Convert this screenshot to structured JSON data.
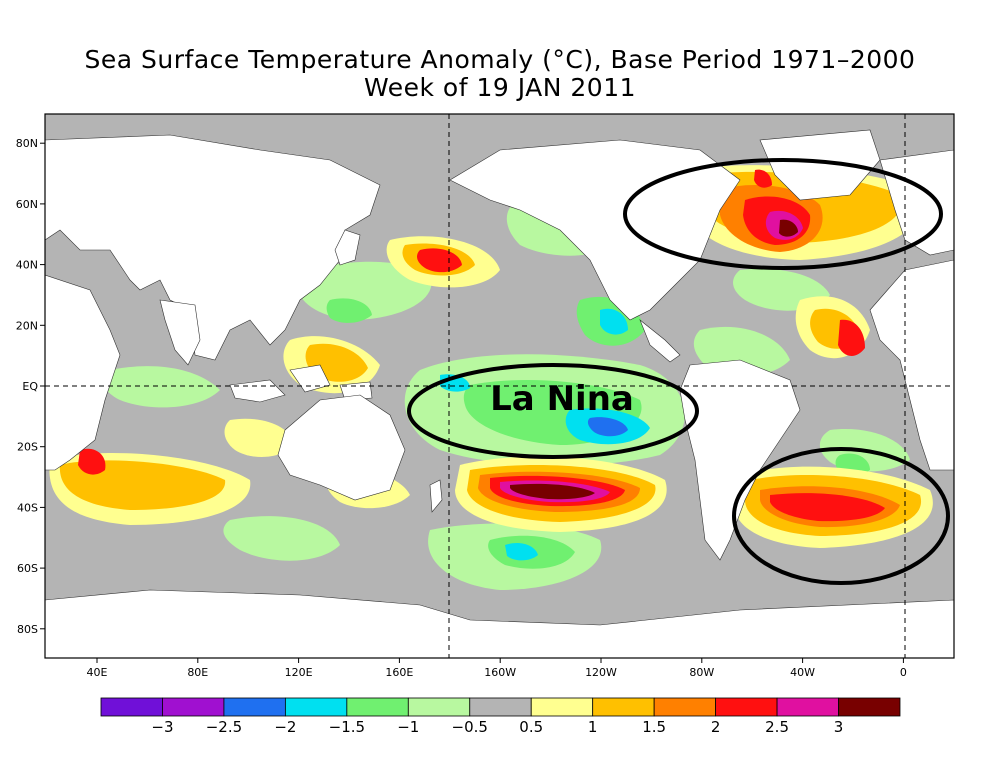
{
  "title": {
    "line1": "Sea Surface Temperature Anomaly (°C), Base Period 1971–2000",
    "line2": "Week of 19 JAN 2011"
  },
  "annotation": {
    "label": "La Nina"
  },
  "lat_labels": [
    "80N",
    "60N",
    "40N",
    "20N",
    "EQ",
    "20S",
    "40S",
    "60S",
    "80S"
  ],
  "lon_labels": [
    "40E",
    "80E",
    "120E",
    "160E",
    "160W",
    "120W",
    "80W",
    "40W",
    "0"
  ],
  "colorbar": {
    "colors": [
      "#7010d8",
      "#a010d0",
      "#1f70f0",
      "#00e0f0",
      "#70f070",
      "#b8f8a0",
      "#b4b4b4",
      "#ffff90",
      "#ffc000",
      "#ff8000",
      "#ff1010",
      "#e010a0",
      "#780000"
    ],
    "labels": [
      "−3",
      "−2.5",
      "−2",
      "−1.5",
      "−1",
      "−0.5",
      "0.5",
      "1",
      "1.5",
      "2",
      "2.5",
      "3"
    ]
  },
  "chart_data": {
    "type": "heatmap",
    "title": "Sea Surface Temperature Anomaly (°C), Base Period 1971–2000",
    "subtitle": "Week of 19 JAN 2011",
    "xlabel": "",
    "ylabel": "",
    "x_ticks": [
      "40E",
      "80E",
      "120E",
      "160E",
      "160W",
      "120W",
      "80W",
      "40W",
      "0"
    ],
    "y_ticks": [
      "80N",
      "60N",
      "40N",
      "20N",
      "EQ",
      "20S",
      "40S",
      "60S",
      "80S"
    ],
    "color_levels": [
      -3,
      -2.5,
      -2,
      -1.5,
      -1,
      -0.5,
      0.5,
      1,
      1.5,
      2,
      2.5,
      3
    ],
    "annotations": [
      "La Nina"
    ]
  }
}
